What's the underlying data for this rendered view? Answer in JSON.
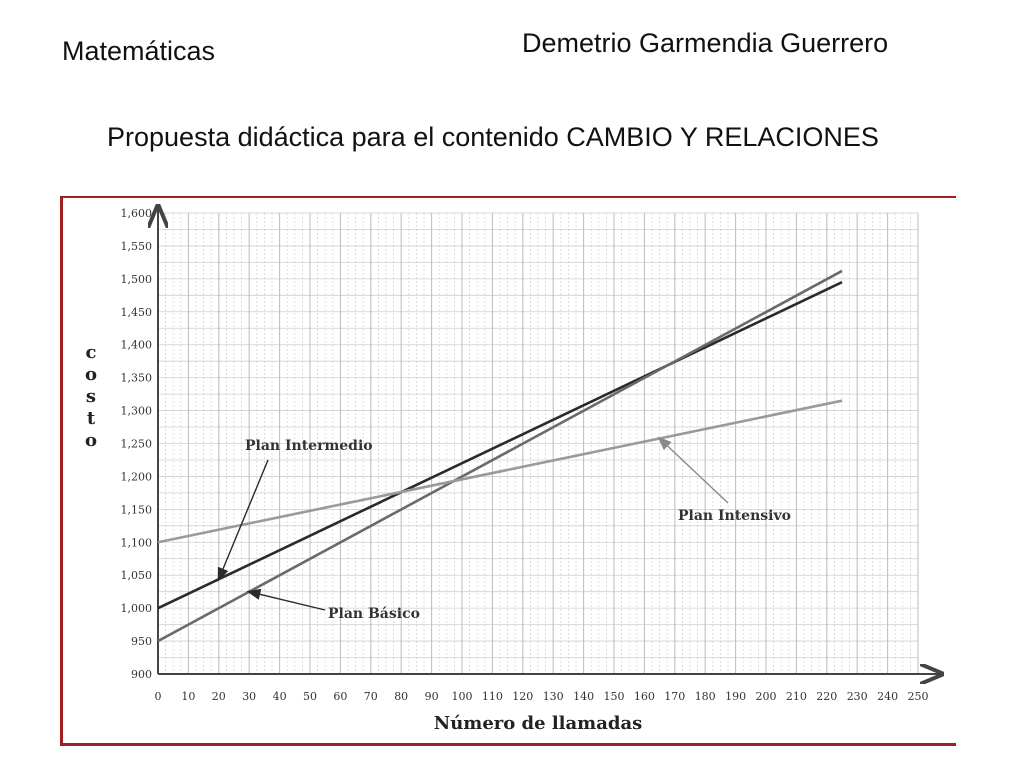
{
  "header": {
    "subject": "Matemáticas",
    "author": "Demetrio Garmendia Guerrero",
    "title": "Propuesta didáctica para el contenido CAMBIO Y RELACIONES"
  },
  "chart_data": {
    "type": "line",
    "title": "",
    "xlabel": "Número de llamadas",
    "ylabel": "costo",
    "xlim": [
      0,
      250
    ],
    "ylim": [
      900,
      1600
    ],
    "xticks": [
      0,
      10,
      20,
      30,
      40,
      50,
      60,
      70,
      80,
      90,
      100,
      110,
      120,
      130,
      140,
      150,
      160,
      170,
      180,
      190,
      200,
      210,
      220,
      230,
      240,
      250
    ],
    "yticks": [
      900,
      950,
      1000,
      1050,
      1100,
      1150,
      1200,
      1250,
      1300,
      1350,
      1400,
      1450,
      1500,
      1550,
      1600
    ],
    "grid": true,
    "series": [
      {
        "name": "Plan Intermedio",
        "x": [
          0,
          225
        ],
        "y": [
          1000,
          1495
        ],
        "color": "#2a2a2a"
      },
      {
        "name": "Plan Básico",
        "x": [
          0,
          225
        ],
        "y": [
          950,
          1512
        ],
        "color": "#6a6a6a"
      },
      {
        "name": "Plan Intensivo",
        "x": [
          0,
          225
        ],
        "y": [
          1100,
          1315
        ],
        "color": "#9a9a9a"
      }
    ],
    "annotations": [
      {
        "text": "Plan Intermedio",
        "series": "Plan Intermedio",
        "arrow_to_x": 20
      },
      {
        "text": "Plan Básico",
        "series": "Plan Básico",
        "arrow_to_x": 30
      },
      {
        "text": "Plan Intensivo",
        "series": "Plan Intensivo",
        "arrow_to_x": 165
      }
    ]
  }
}
